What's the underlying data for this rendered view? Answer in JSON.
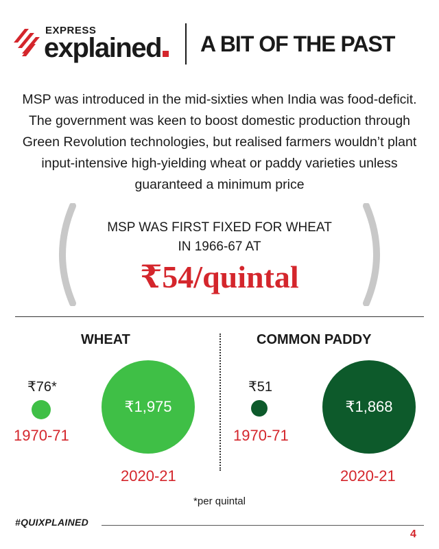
{
  "header": {
    "brand_top": "EXPRESS",
    "brand_main": "explained",
    "title": "A BIT OF THE PAST",
    "brand_color": "#d4262c"
  },
  "intro": {
    "text": "MSP was introduced in the mid-sixties when India was food-deficit. The government was keen to boost domestic production through Green Revolution technologies, but realised farmers wouldn’t plant input-intensive high-yielding wheat or paddy varieties unless guaranteed a minimum price"
  },
  "callout": {
    "line1": "MSP WAS FIRST FIXED FOR WHEAT",
    "line2": "IN 1966-67 AT",
    "value": "₹54/quintal"
  },
  "wheat": {
    "title": "WHEAT",
    "color": "#3fbf46",
    "old_value": "₹76*",
    "old_year": "1970-71",
    "new_value": "₹1,975",
    "new_year": "2020-21"
  },
  "paddy": {
    "title": "COMMON PADDY",
    "color": "#0d5a2b",
    "old_value": "₹51",
    "old_year": "1970-71",
    "new_value": "₹1,868",
    "new_year": "2020-21"
  },
  "footer": {
    "footnote": "*per quintal",
    "hashtag": "#QUIXPLAINED",
    "page_number": "4"
  },
  "icons": {
    "logo": "express-explained-stripes-icon",
    "brackets": "parenthesis-bracket-icon"
  }
}
